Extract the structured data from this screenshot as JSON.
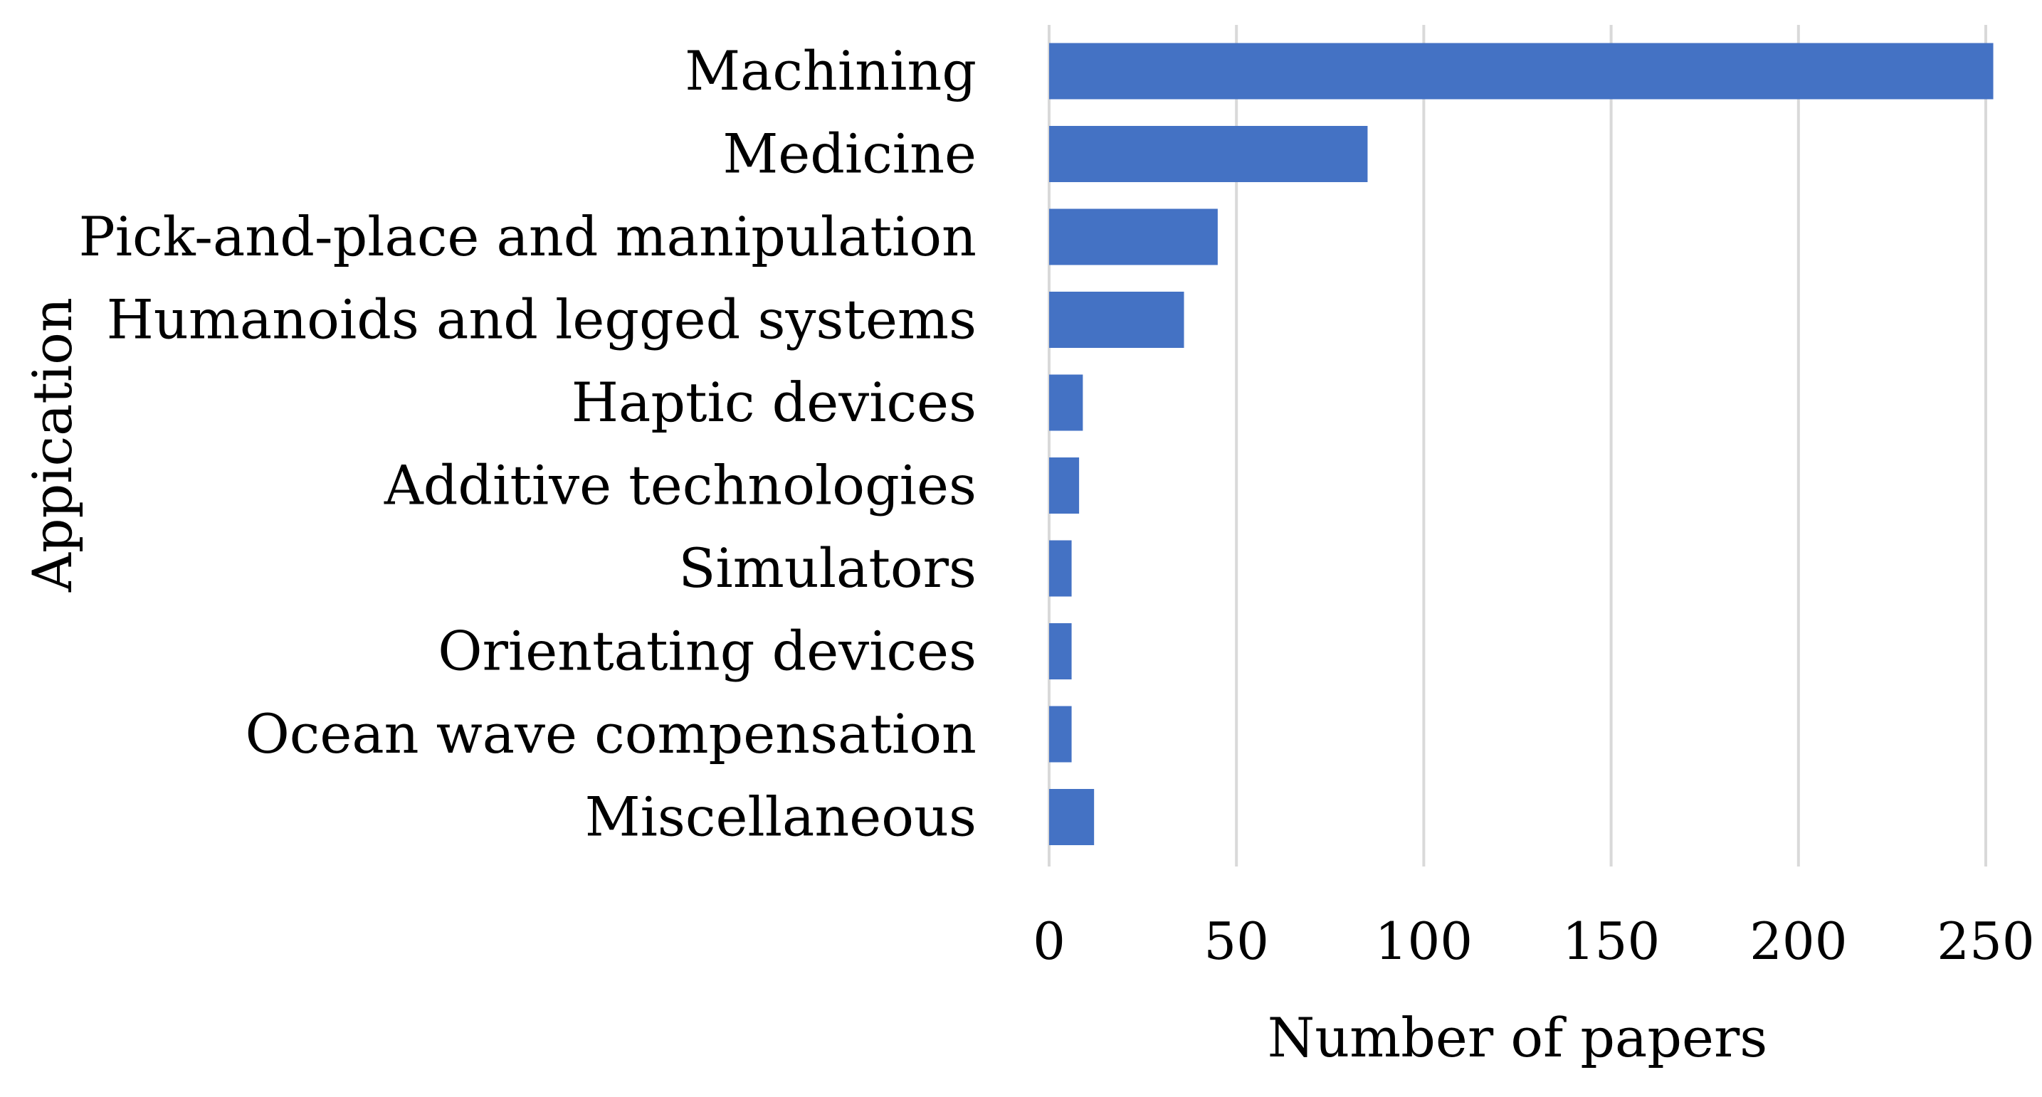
{
  "chart_data": {
    "type": "bar",
    "orientation": "horizontal",
    "categories": [
      "Machining",
      "Medicine",
      "Pick-and-place and manipulation",
      "Humanoids and legged systems",
      "Haptic devices",
      "Additive technologies",
      "Simulators",
      "Orientating devices",
      "Ocean wave compensation",
      "Miscellaneous"
    ],
    "values": [
      252,
      85,
      45,
      36,
      9,
      8,
      6,
      6,
      6,
      12
    ],
    "title": "",
    "xlabel": "Number of papers",
    "ylabel": "Appication",
    "xlim": [
      0,
      250
    ],
    "xticks": [
      0,
      50,
      100,
      150,
      200,
      250
    ],
    "grid": "vertical",
    "legend": "none",
    "bar_color": "#4472c4",
    "grid_color": "#d9d9d9"
  }
}
